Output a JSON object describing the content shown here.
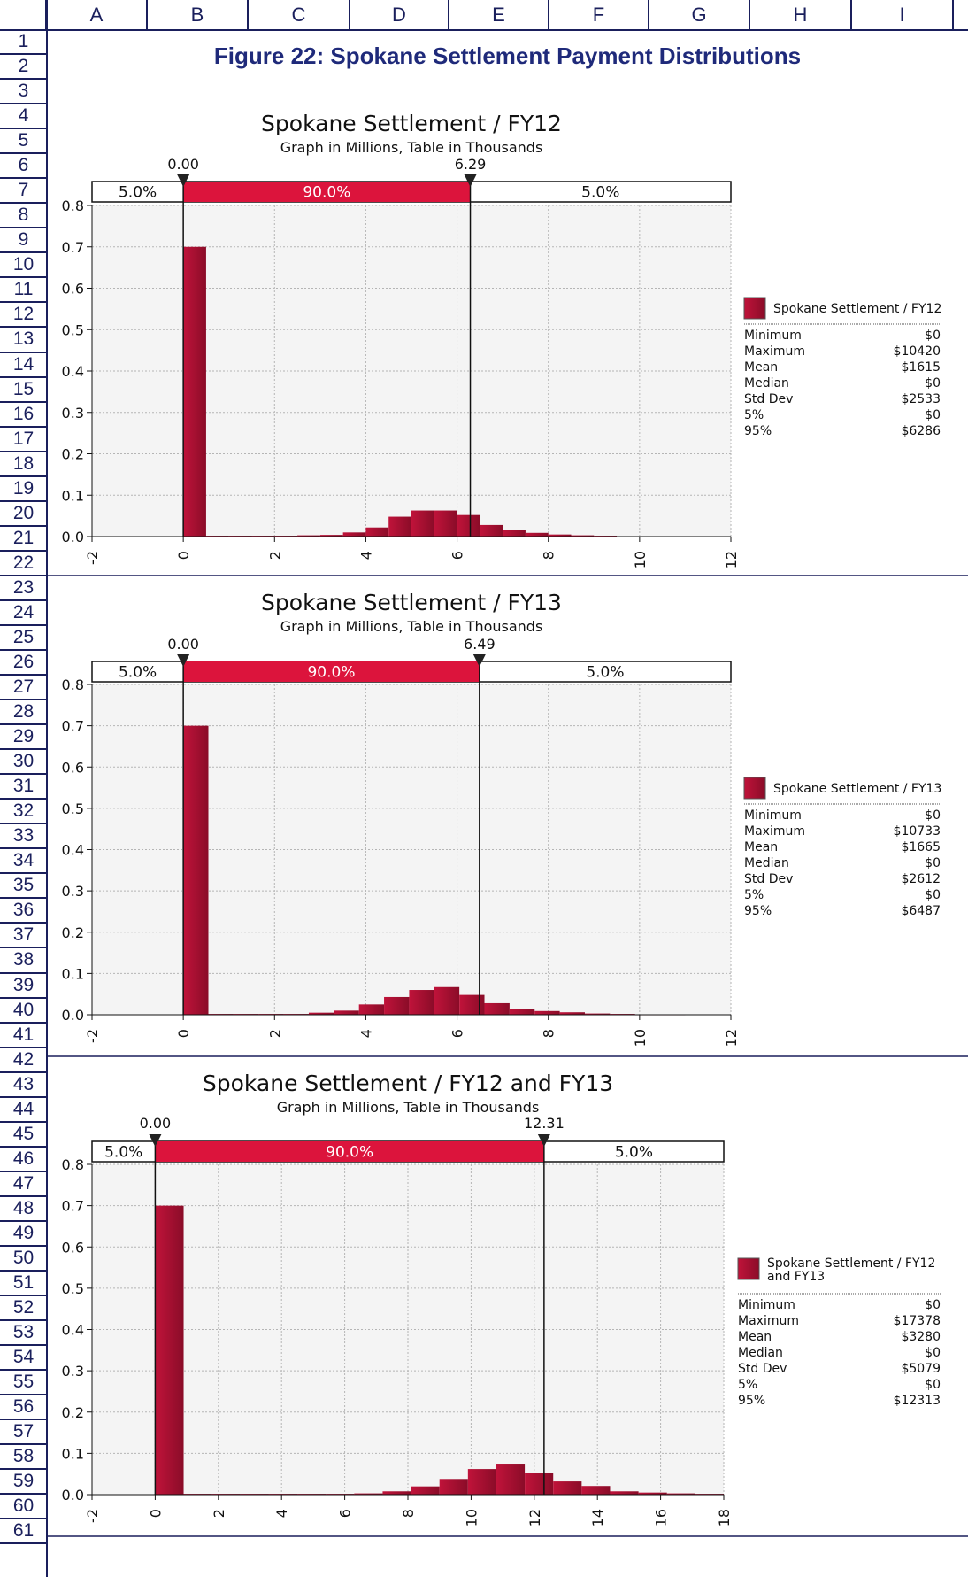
{
  "sheet": {
    "columns": [
      "A",
      "B",
      "C",
      "D",
      "E",
      "F",
      "G",
      "H",
      "I"
    ],
    "rows": [
      "1",
      "2",
      "3",
      "4",
      "5",
      "6",
      "7",
      "8",
      "9",
      "10",
      "11",
      "12",
      "13",
      "14",
      "15",
      "16",
      "17",
      "18",
      "19",
      "20",
      "21",
      "22",
      "23",
      "24",
      "25",
      "26",
      "27",
      "28",
      "29",
      "30",
      "31",
      "32",
      "33",
      "34",
      "35",
      "36",
      "37",
      "38",
      "39",
      "40",
      "41",
      "42",
      "43",
      "44",
      "45",
      "46",
      "47",
      "48",
      "49",
      "50",
      "51",
      "52",
      "53",
      "54",
      "55",
      "56",
      "57",
      "58",
      "59",
      "60",
      "61"
    ],
    "figure_title": "Figure 22: Spokane Settlement Payment Distributions",
    "colors": {
      "grid_lines": "#1a1f5c",
      "bar": "#c0133a",
      "bar_dark": "#8a0c28",
      "band": "#dc143c",
      "plot_bg": "#f4f4f4"
    }
  },
  "chart_data": [
    {
      "type": "bar",
      "title": "Spokane Settlement / FY12",
      "subtitle": "Graph in Millions, Table in Thousands",
      "xlim": [
        -2,
        12
      ],
      "xticks": [
        "-2",
        "0",
        "2",
        "4",
        "6",
        "8",
        "10",
        "12"
      ],
      "ylim": [
        0,
        0.8
      ],
      "yticks": [
        "0.0",
        "0.1",
        "0.2",
        "0.3",
        "0.4",
        "0.5",
        "0.6",
        "0.7",
        "0.8"
      ],
      "bin_width": 0.5,
      "bins": [
        {
          "x": 0.0,
          "y": 0.7
        },
        {
          "x": 0.5,
          "y": 0.002
        },
        {
          "x": 1.0,
          "y": 0.002
        },
        {
          "x": 1.5,
          "y": 0.002
        },
        {
          "x": 2.0,
          "y": 0.002
        },
        {
          "x": 2.5,
          "y": 0.003
        },
        {
          "x": 3.0,
          "y": 0.004
        },
        {
          "x": 3.5,
          "y": 0.01
        },
        {
          "x": 4.0,
          "y": 0.022
        },
        {
          "x": 4.5,
          "y": 0.048
        },
        {
          "x": 5.0,
          "y": 0.063
        },
        {
          "x": 5.5,
          "y": 0.063
        },
        {
          "x": 6.0,
          "y": 0.052
        },
        {
          "x": 6.5,
          "y": 0.028
        },
        {
          "x": 7.0,
          "y": 0.015
        },
        {
          "x": 7.5,
          "y": 0.009
        },
        {
          "x": 8.0,
          "y": 0.005
        },
        {
          "x": 8.5,
          "y": 0.003
        },
        {
          "x": 9.0,
          "y": 0.002
        },
        {
          "x": 9.5,
          "y": 0.001
        },
        {
          "x": 10.0,
          "y": 0.001
        }
      ],
      "markers": {
        "left": 0.0,
        "right": 6.29,
        "left_label": "0.00",
        "right_label": "6.29"
      },
      "band": {
        "left": "5.0%",
        "mid": "90.0%",
        "right": "5.0%"
      },
      "legend": [
        "Spokane Settlement / FY12"
      ],
      "stats": [
        {
          "k": "Minimum",
          "v": "$0"
        },
        {
          "k": "Maximum",
          "v": "$10420"
        },
        {
          "k": "Mean",
          "v": "$1615"
        },
        {
          "k": "Median",
          "v": "$0"
        },
        {
          "k": "Std Dev",
          "v": "$2533"
        },
        {
          "k": "5%",
          "v": "$0"
        },
        {
          "k": "95%",
          "v": "$6286"
        }
      ]
    },
    {
      "type": "bar",
      "title": "Spokane Settlement / FY13",
      "subtitle": "Graph in Millions, Table in Thousands",
      "xlim": [
        -2,
        12
      ],
      "xticks": [
        "-2",
        "0",
        "2",
        "4",
        "6",
        "8",
        "10",
        "12"
      ],
      "ylim": [
        0,
        0.8
      ],
      "yticks": [
        "0.0",
        "0.1",
        "0.2",
        "0.3",
        "0.4",
        "0.5",
        "0.6",
        "0.7",
        "0.8"
      ],
      "bin_width": 0.55,
      "bins": [
        {
          "x": 0.0,
          "y": 0.7
        },
        {
          "x": 0.55,
          "y": 0.002
        },
        {
          "x": 1.1,
          "y": 0.002
        },
        {
          "x": 1.65,
          "y": 0.002
        },
        {
          "x": 2.2,
          "y": 0.002
        },
        {
          "x": 2.75,
          "y": 0.005
        },
        {
          "x": 3.3,
          "y": 0.01
        },
        {
          "x": 3.85,
          "y": 0.025
        },
        {
          "x": 4.4,
          "y": 0.043
        },
        {
          "x": 4.95,
          "y": 0.06
        },
        {
          "x": 5.5,
          "y": 0.067
        },
        {
          "x": 6.05,
          "y": 0.048
        },
        {
          "x": 6.6,
          "y": 0.028
        },
        {
          "x": 7.15,
          "y": 0.015
        },
        {
          "x": 7.7,
          "y": 0.009
        },
        {
          "x": 8.25,
          "y": 0.006
        },
        {
          "x": 8.8,
          "y": 0.003
        },
        {
          "x": 9.35,
          "y": 0.002
        },
        {
          "x": 9.9,
          "y": 0.001
        },
        {
          "x": 10.45,
          "y": 0.001
        }
      ],
      "markers": {
        "left": 0.0,
        "right": 6.49,
        "left_label": "0.00",
        "right_label": "6.49"
      },
      "band": {
        "left": "5.0%",
        "mid": "90.0%",
        "right": "5.0%"
      },
      "legend": [
        "Spokane Settlement / FY13"
      ],
      "stats": [
        {
          "k": "Minimum",
          "v": "$0"
        },
        {
          "k": "Maximum",
          "v": "$10733"
        },
        {
          "k": "Mean",
          "v": "$1665"
        },
        {
          "k": "Median",
          "v": "$0"
        },
        {
          "k": "Std Dev",
          "v": "$2612"
        },
        {
          "k": "5%",
          "v": "$0"
        },
        {
          "k": "95%",
          "v": "$6487"
        }
      ]
    },
    {
      "type": "bar",
      "title": "Spokane Settlement / FY12 and FY13",
      "subtitle": "Graph in Millions, Table in Thousands",
      "xlim": [
        -2,
        18
      ],
      "xticks": [
        "-2",
        "0",
        "2",
        "4",
        "6",
        "8",
        "10",
        "12",
        "14",
        "16",
        "18"
      ],
      "ylim": [
        0,
        0.8
      ],
      "yticks": [
        "0.0",
        "0.1",
        "0.2",
        "0.3",
        "0.4",
        "0.5",
        "0.6",
        "0.7",
        "0.8"
      ],
      "bin_width": 0.9,
      "bins": [
        {
          "x": 0.0,
          "y": 0.7
        },
        {
          "x": 0.9,
          "y": 0.002
        },
        {
          "x": 1.8,
          "y": 0.002
        },
        {
          "x": 2.7,
          "y": 0.002
        },
        {
          "x": 3.6,
          "y": 0.002
        },
        {
          "x": 4.5,
          "y": 0.002
        },
        {
          "x": 5.4,
          "y": 0.002
        },
        {
          "x": 6.3,
          "y": 0.003
        },
        {
          "x": 7.2,
          "y": 0.008
        },
        {
          "x": 8.1,
          "y": 0.02
        },
        {
          "x": 9.0,
          "y": 0.038
        },
        {
          "x": 9.9,
          "y": 0.062
        },
        {
          "x": 10.8,
          "y": 0.075
        },
        {
          "x": 11.7,
          "y": 0.053
        },
        {
          "x": 12.6,
          "y": 0.032
        },
        {
          "x": 13.5,
          "y": 0.021
        },
        {
          "x": 14.4,
          "y": 0.008
        },
        {
          "x": 15.3,
          "y": 0.005
        },
        {
          "x": 16.2,
          "y": 0.003
        },
        {
          "x": 17.1,
          "y": 0.002
        }
      ],
      "markers": {
        "left": 0.0,
        "right": 12.31,
        "left_label": "0.00",
        "right_label": "12.31"
      },
      "band": {
        "left": "5.0%",
        "mid": "90.0%",
        "right": "5.0%"
      },
      "legend": [
        "Spokane Settlement / FY12",
        "and FY13"
      ],
      "stats": [
        {
          "k": "Minimum",
          "v": "$0"
        },
        {
          "k": "Maximum",
          "v": "$17378"
        },
        {
          "k": "Mean",
          "v": "$3280"
        },
        {
          "k": "Median",
          "v": "$0"
        },
        {
          "k": "Std Dev",
          "v": "$5079"
        },
        {
          "k": "5%",
          "v": "$0"
        },
        {
          "k": "95%",
          "v": "$12313"
        }
      ]
    }
  ]
}
